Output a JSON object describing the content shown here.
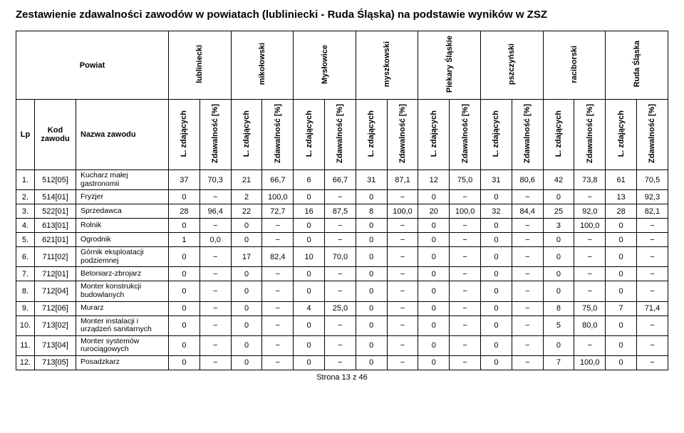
{
  "title": "Zestawienie zdawalności zawodów w powiatach (lubliniecki - Ruda Śląska) na podstawie wyników w ZSZ",
  "powiat_label": "Powiat",
  "lp_label": "Lp",
  "kod_label": "Kod zawodu",
  "nazwa_label": "Nazwa zawodu",
  "footer": "Strona 13 z 46",
  "regions": [
    "lubliniecki",
    "mikołowski",
    "Mysłowice",
    "myszkowski",
    "Piekary Śląskie",
    "pszczyński",
    "raciborski",
    "Ruda Śląska"
  ],
  "subcol_a": "L. zdających",
  "subcol_b": "Zdawalność [%]",
  "rows": [
    {
      "lp": "1.",
      "kod": "512[05]",
      "nazwa": "Kucharz małej gastronomii",
      "v": [
        "37",
        "70,3",
        "21",
        "66,7",
        "6",
        "66,7",
        "31",
        "87,1",
        "12",
        "75,0",
        "31",
        "80,6",
        "42",
        "73,8",
        "61",
        "70,5"
      ]
    },
    {
      "lp": "2.",
      "kod": "514[01]",
      "nazwa": "Fryzjer",
      "v": [
        "0",
        "−",
        "2",
        "100,0",
        "0",
        "−",
        "0",
        "−",
        "0",
        "−",
        "0",
        "−",
        "0",
        "−",
        "13",
        "92,3"
      ]
    },
    {
      "lp": "3.",
      "kod": "522[01]",
      "nazwa": "Sprzedawca",
      "v": [
        "28",
        "96,4",
        "22",
        "72,7",
        "16",
        "87,5",
        "8",
        "100,0",
        "20",
        "100,0",
        "32",
        "84,4",
        "25",
        "92,0",
        "28",
        "82,1"
      ]
    },
    {
      "lp": "4.",
      "kod": "613[01]",
      "nazwa": "Rolnik",
      "v": [
        "0",
        "−",
        "0",
        "−",
        "0",
        "−",
        "0",
        "−",
        "0",
        "−",
        "0",
        "−",
        "3",
        "100,0",
        "0",
        "−"
      ]
    },
    {
      "lp": "5.",
      "kod": "621[01]",
      "nazwa": "Ogrodnik",
      "v": [
        "1",
        "0,0",
        "0",
        "−",
        "0",
        "−",
        "0",
        "−",
        "0",
        "−",
        "0",
        "−",
        "0",
        "−",
        "0",
        "−"
      ]
    },
    {
      "lp": "6.",
      "kod": "711[02]",
      "nazwa": "Górnik eksploatacji podziemnej",
      "v": [
        "0",
        "−",
        "17",
        "82,4",
        "10",
        "70,0",
        "0",
        "−",
        "0",
        "−",
        "0",
        "−",
        "0",
        "−",
        "0",
        "−"
      ]
    },
    {
      "lp": "7.",
      "kod": "712[01]",
      "nazwa": "Betoniarz-zbrojarz",
      "v": [
        "0",
        "−",
        "0",
        "−",
        "0",
        "−",
        "0",
        "−",
        "0",
        "−",
        "0",
        "−",
        "0",
        "−",
        "0",
        "−"
      ]
    },
    {
      "lp": "8.",
      "kod": "712[04]",
      "nazwa": "Monter konstrukcji budowlanych",
      "v": [
        "0",
        "−",
        "0",
        "−",
        "0",
        "−",
        "0",
        "−",
        "0",
        "−",
        "0",
        "−",
        "0",
        "−",
        "0",
        "−"
      ]
    },
    {
      "lp": "9.",
      "kod": "712[06]",
      "nazwa": "Murarz",
      "v": [
        "0",
        "−",
        "0",
        "−",
        "4",
        "25,0",
        "0",
        "−",
        "0",
        "−",
        "0",
        "−",
        "8",
        "75,0",
        "7",
        "71,4"
      ]
    },
    {
      "lp": "10.",
      "kod": "713[02]",
      "nazwa": "Monter instalacji i urządzeń sanitarnych",
      "v": [
        "0",
        "−",
        "0",
        "−",
        "0",
        "−",
        "0",
        "−",
        "0",
        "−",
        "0",
        "−",
        "5",
        "80,0",
        "0",
        "−"
      ]
    },
    {
      "lp": "11.",
      "kod": "713[04]",
      "nazwa": "Monter systemów rurociągowych",
      "v": [
        "0",
        "−",
        "0",
        "−",
        "0",
        "−",
        "0",
        "−",
        "0",
        "−",
        "0",
        "−",
        "0",
        "−",
        "0",
        "−"
      ]
    },
    {
      "lp": "12.",
      "kod": "713[05]",
      "nazwa": "Posadzkarz",
      "v": [
        "0",
        "−",
        "0",
        "−",
        "0",
        "−",
        "0",
        "−",
        "0",
        "−",
        "0",
        "−",
        "7",
        "100,0",
        "0",
        "−"
      ]
    }
  ]
}
